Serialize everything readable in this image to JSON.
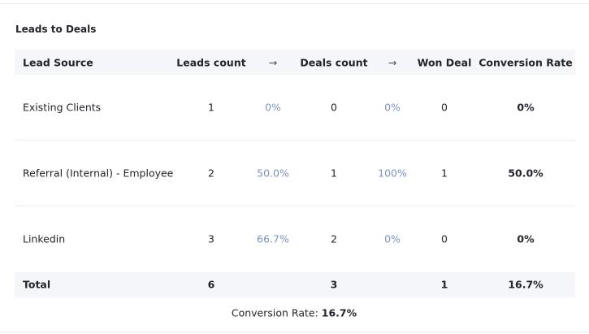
{
  "title": "Leads to Deals",
  "table": {
    "header": [
      "Lead Source",
      "Leads count",
      "→",
      "Deals count",
      "→",
      "Won Deal",
      "Conversion Rate"
    ],
    "rows": [
      [
        "Existing Clients",
        1,
        "0%",
        0,
        "0%",
        0,
        "0%"
      ],
      [
        "Referral (Internal) - Employee",
        2,
        "50.0%",
        1,
        "100%",
        1,
        "50.0%"
      ],
      [
        "Linkedin",
        3,
        "66.7%",
        2,
        "0%",
        0,
        "0%"
      ]
    ],
    "total": [
      "Total",
      6,
      3,
      1,
      "16.7%"
    ]
  },
  "footer": {
    "label": "Conversion Rate:",
    "value": "16.7%"
  }
}
